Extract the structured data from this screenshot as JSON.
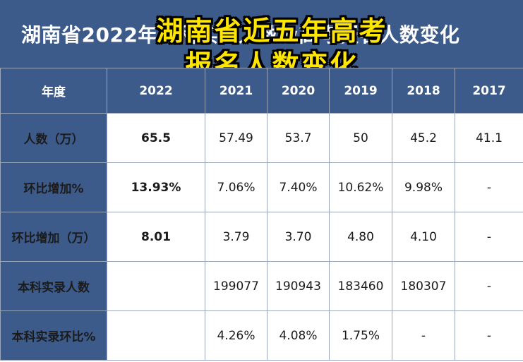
{
  "title": "湖南省2022年本科实录人数及高考报名人数变化",
  "overlay_caption": {
    "line1": "湖南省近五年高考",
    "line2": "报名人数变化"
  },
  "colors": {
    "header_bg": "#3c5b8a",
    "highlight_text": "#c0182a",
    "overlay_text": "#ffe600"
  },
  "table": {
    "header": [
      "年度",
      "2022",
      "2021",
      "2020",
      "2019",
      "2018",
      "2017"
    ],
    "rows": [
      {
        "label": "人数（万）",
        "cells": [
          "65.5",
          "57.49",
          "53.7",
          "50",
          "45.2",
          "41.1"
        ]
      },
      {
        "label": "环比增加%",
        "cells": [
          "13.93%",
          "7.06%",
          "7.40%",
          "10.62%",
          "9.98%",
          "-"
        ]
      },
      {
        "label": "环比增加（万）",
        "cells": [
          "8.01",
          "3.79",
          "3.70",
          "4.80",
          "4.10",
          "-"
        ]
      },
      {
        "label": "本科实录人数",
        "cells": [
          "",
          "199077",
          "190943",
          "183460",
          "180307",
          "-"
        ]
      },
      {
        "label": "本科实录环比%",
        "cells": [
          "",
          "4.26%",
          "4.08%",
          "1.75%",
          "-",
          "-"
        ]
      }
    ]
  }
}
